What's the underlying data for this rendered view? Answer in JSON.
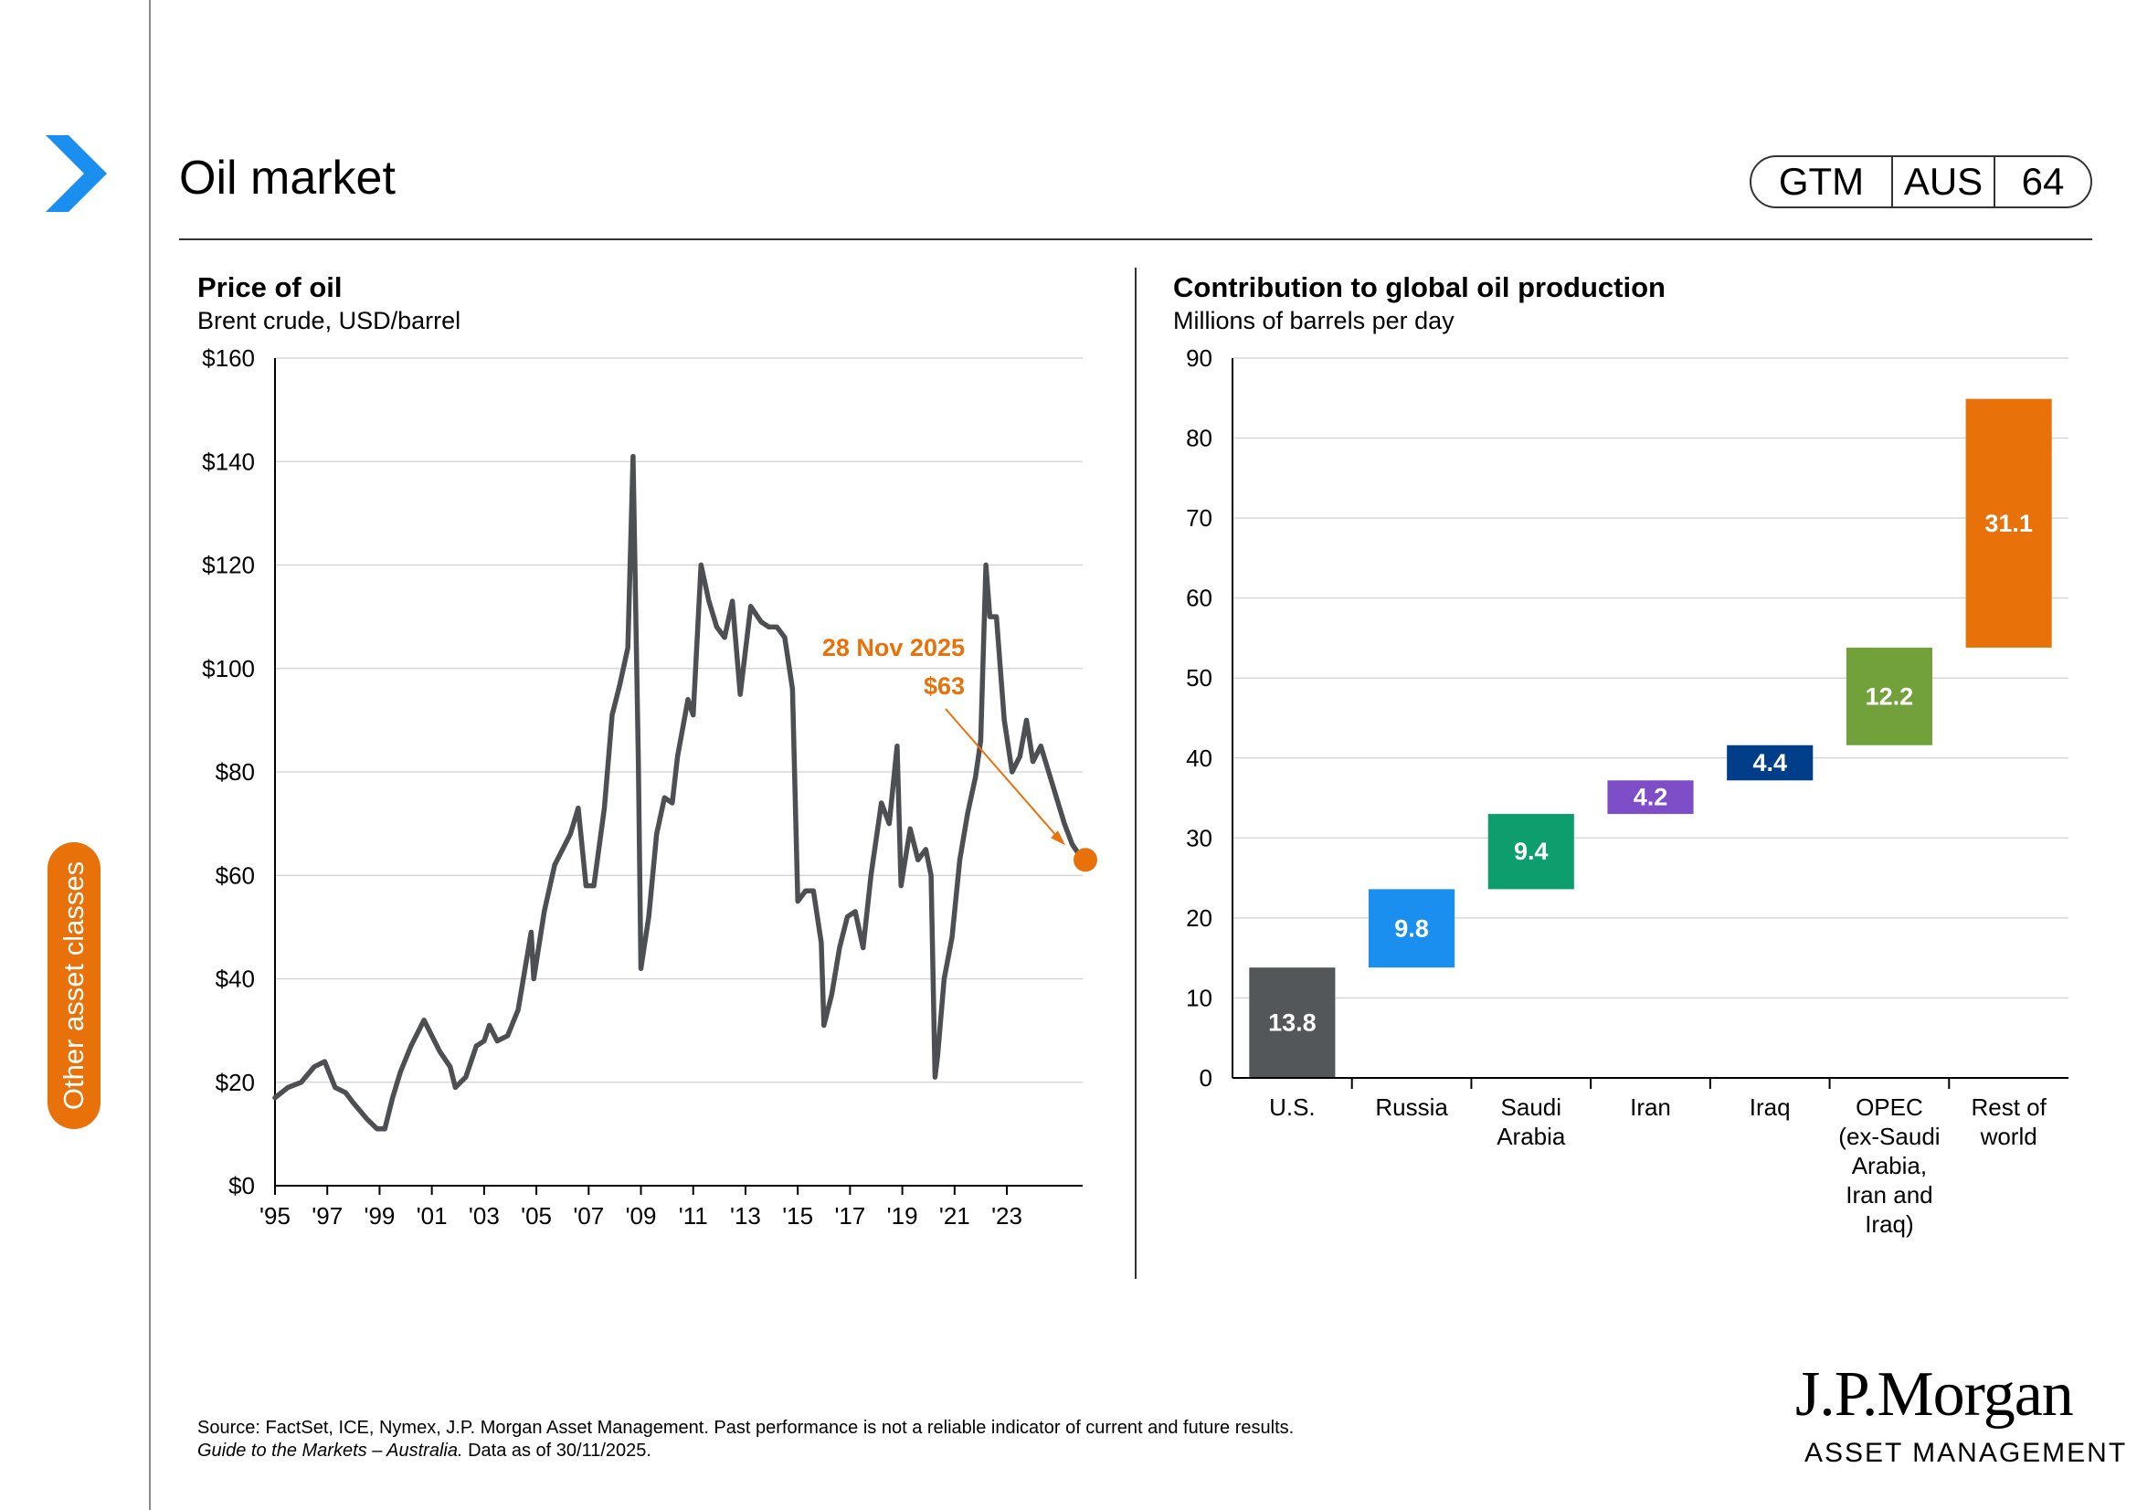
{
  "page": {
    "title": "Oil market",
    "badge": [
      "GTM",
      "AUS",
      "64"
    ],
    "side_tab": "Other asset classes",
    "nav_icon": "chevron-right-icon",
    "colors": {
      "accent_blue": "#1a8fef",
      "accent_orange": "#e8710a",
      "line_grey": "#4d4f53"
    }
  },
  "footnote": {
    "line1": "Source: FactSet, ICE, Nymex, J.P. Morgan Asset Management. Past performance is not a reliable indicator of current and future results.",
    "line2_italic": "Guide to the Markets – Australia.",
    "line2_rest": " Data as of 30/11/2025."
  },
  "logo": {
    "line1": "J.P.Morgan",
    "line2": "ASSET MANAGEMENT"
  },
  "chart_data": [
    {
      "type": "line",
      "title": "Price of oil",
      "subtitle": "Brent crude, USD/barrel",
      "ylim": [
        0,
        160
      ],
      "yticks": [
        "$0",
        "$20",
        "$40",
        "$60",
        "$80",
        "$100",
        "$120",
        "$140",
        "$160"
      ],
      "xlim": [
        1995,
        2025.9
      ],
      "xticks": [
        {
          "x": 1995,
          "label": "'95"
        },
        {
          "x": 1997,
          "label": "'97"
        },
        {
          "x": 1999,
          "label": "'99"
        },
        {
          "x": 2001,
          "label": "'01"
        },
        {
          "x": 2003,
          "label": "'03"
        },
        {
          "x": 2005,
          "label": "'05"
        },
        {
          "x": 2007,
          "label": "'07"
        },
        {
          "x": 2009,
          "label": "'09"
        },
        {
          "x": 2011,
          "label": "'11"
        },
        {
          "x": 2013,
          "label": "'13"
        },
        {
          "x": 2015,
          "label": "'15"
        },
        {
          "x": 2017,
          "label": "'17"
        },
        {
          "x": 2019,
          "label": "'19"
        },
        {
          "x": 2021,
          "label": "'21"
        },
        {
          "x": 2023,
          "label": "'23"
        }
      ],
      "grid": true,
      "series": [
        {
          "x": [
            1995.0,
            1995.5,
            1996.0,
            1996.5,
            1996.9,
            1997.3,
            1997.7,
            1998.0,
            1998.5,
            1998.9,
            1999.2,
            1999.5,
            1999.8,
            2000.2,
            2000.7,
            2000.9,
            2001.3,
            2001.7,
            2001.9,
            2002.3,
            2002.7,
            2003.0,
            2003.2,
            2003.5,
            2003.9,
            2004.3,
            2004.8,
            2004.9,
            2005.3,
            2005.7,
            2005.9,
            2006.3,
            2006.6,
            2006.9,
            2007.2,
            2007.6,
            2007.9,
            2008.2,
            2008.5,
            2008.7,
            2008.9,
            2009.0,
            2009.3,
            2009.6,
            2009.9,
            2010.2,
            2010.4,
            2010.8,
            2011.0,
            2011.3,
            2011.6,
            2011.9,
            2012.2,
            2012.5,
            2012.8,
            2013.2,
            2013.6,
            2013.9,
            2014.2,
            2014.5,
            2014.8,
            2015.0,
            2015.3,
            2015.6,
            2015.9,
            2016.0,
            2016.3,
            2016.6,
            2016.9,
            2017.2,
            2017.5,
            2017.8,
            2018.2,
            2018.5,
            2018.8,
            2018.95,
            2019.3,
            2019.6,
            2019.9,
            2020.1,
            2020.25,
            2020.35,
            2020.6,
            2020.9,
            2021.2,
            2021.5,
            2021.8,
            2022.0,
            2022.2,
            2022.35,
            2022.6,
            2022.9,
            2023.2,
            2023.5,
            2023.75,
            2024.0,
            2024.3,
            2024.6,
            2024.9,
            2025.2,
            2025.5,
            2025.9
          ],
          "y": [
            17,
            19,
            20,
            23,
            24,
            19,
            18,
            16,
            13,
            11,
            11,
            17,
            22,
            27,
            32,
            30,
            26,
            23,
            19,
            21,
            27,
            28,
            31,
            28,
            29,
            34,
            49,
            40,
            53,
            62,
            64,
            68,
            73,
            58,
            58,
            73,
            91,
            97,
            104,
            141,
            82,
            42,
            52,
            68,
            75,
            74,
            83,
            94,
            91,
            120,
            113,
            108,
            106,
            113,
            95,
            112,
            109,
            108,
            108,
            106,
            96,
            55,
            57,
            57,
            47,
            31,
            37,
            46,
            52,
            53,
            46,
            60,
            74,
            70,
            85,
            58,
            69,
            63,
            65,
            60,
            21,
            25,
            40,
            48,
            63,
            72,
            79,
            86,
            120,
            110,
            110,
            90,
            80,
            83,
            90,
            82,
            85,
            80,
            75,
            70,
            66,
            63
          ]
        }
      ],
      "annotation": {
        "date": "28 Nov 2025",
        "value_label": "$63",
        "x": 2025.9,
        "y": 63
      }
    },
    {
      "type": "bar",
      "subtype": "waterfall",
      "title": "Contribution to global oil production",
      "subtitle": "Millions of barrels per day",
      "ylim": [
        0,
        90
      ],
      "yticks": [
        "0",
        "10",
        "20",
        "30",
        "40",
        "50",
        "60",
        "70",
        "80",
        "90"
      ],
      "grid": true,
      "categories": [
        [
          "U.S."
        ],
        [
          "Russia"
        ],
        [
          "Saudi",
          "Arabia"
        ],
        [
          "Iran"
        ],
        [
          "Iraq"
        ],
        [
          "OPEC",
          "(ex-Saudi",
          "Arabia,",
          "Iran and",
          "Iraq)"
        ],
        [
          "Rest of",
          "world"
        ]
      ],
      "values": [
        13.8,
        9.8,
        9.4,
        4.2,
        4.4,
        12.2,
        31.1
      ],
      "labels": [
        "13.8",
        "9.8",
        "9.4",
        "4.2",
        "4.4",
        "12.2",
        "31.1"
      ],
      "colors": [
        "#545759",
        "#1a8fef",
        "#0e9d6c",
        "#7e4ec8",
        "#003e8a",
        "#72a13c",
        "#e8710a"
      ]
    }
  ]
}
